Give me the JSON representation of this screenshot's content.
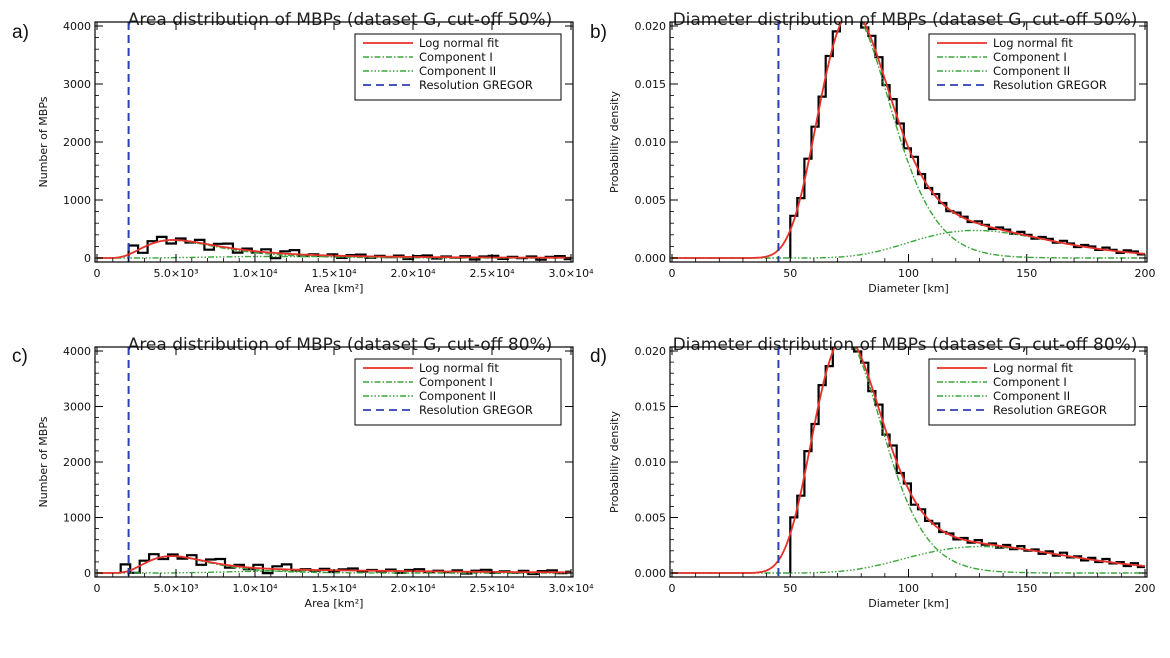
{
  "colors": {
    "histogram": "#000000",
    "fit": "#e8312a",
    "component": "#3aa53a",
    "resolution": "#2f3fb4"
  },
  "legend_entries": [
    "Log normal fit",
    "Component I",
    "Component II",
    "Resolution GREGOR"
  ],
  "chart_data": [
    {
      "panel": "a)",
      "type": "line",
      "title": "Area distribution of MBPs (dataset G, cut-off 50%)",
      "xlabel": "Area [km²]",
      "ylabel": "Number of MBPs",
      "xlim": [
        0,
        30000
      ],
      "ylim": [
        0,
        4000
      ],
      "xticks": [
        0,
        5000,
        10000,
        15000,
        20000,
        25000,
        30000
      ],
      "xtick_labels": [
        "0",
        "5.0×10³",
        "1.0×10⁴",
        "1.5×10⁴",
        "2.0×10⁴",
        "2.5×10⁴",
        "3.0×10⁴"
      ],
      "yticks": [
        0,
        1000,
        2000,
        3000,
        4000
      ],
      "ytick_labels": [
        "0",
        "1000",
        "2000",
        "3000",
        "4000"
      ],
      "resolution_line": 2000,
      "legend": [
        "Log normal fit",
        "Component I",
        "Component II",
        "Resolution GREGOR"
      ],
      "fit": {
        "kind": "lognormal-mixture",
        "scale": 2400000,
        "components": [
          {
            "w": 0.82,
            "median": 6000,
            "sigma": 0.48
          },
          {
            "w": 0.18,
            "median": 15000,
            "sigma": 0.5
          }
        ]
      },
      "histogram": {
        "start": 2000,
        "bin_width": 600,
        "noise": [
          50,
          -90,
          40,
          70,
          -60,
          30,
          -20
        ]
      }
    },
    {
      "panel": "b)",
      "type": "line",
      "title": "Diameter distribution of MBPs (dataset G, cut-off 50%)",
      "xlabel": "Diameter [km]",
      "ylabel": "Probability density",
      "xlim": [
        0,
        200
      ],
      "ylim": [
        0,
        0.02
      ],
      "xticks": [
        0,
        50,
        100,
        150,
        200
      ],
      "xtick_labels": [
        "0",
        "50",
        "100",
        "150",
        "200"
      ],
      "yticks": [
        0,
        0.005,
        0.01,
        0.015,
        0.02
      ],
      "ytick_labels": [
        "0.000",
        "0.005",
        "0.010",
        "0.015",
        "0.020"
      ],
      "resolution_line": 45,
      "legend": [
        "Log normal fit",
        "Component I",
        "Component II",
        "Resolution GREGOR"
      ],
      "fit": {
        "kind": "lognormal-mixture",
        "scale": 1,
        "components": [
          {
            "w": 0.82,
            "median": 79,
            "sigma": 0.2
          },
          {
            "w": 0.18,
            "median": 135,
            "sigma": 0.23
          }
        ]
      },
      "histogram": {
        "start": 50,
        "bin_width": 3,
        "noise": [
          0.0003,
          -0.0002,
          0.0005,
          0.0002,
          -0.0003,
          0.0004
        ]
      }
    },
    {
      "panel": "c)",
      "type": "line",
      "title": "Area distribution of MBPs (dataset G, cut-off 80%)",
      "xlabel": "Area [km²]",
      "ylabel": "Number of MBPs",
      "xlim": [
        0,
        30000
      ],
      "ylim": [
        0,
        4000
      ],
      "xticks": [
        0,
        5000,
        10000,
        15000,
        20000,
        25000,
        30000
      ],
      "xtick_labels": [
        "0",
        "5.0×10³",
        "1.0×10⁴",
        "1.5×10⁴",
        "2.0×10⁴",
        "2.5×10⁴",
        "3.0×10⁴"
      ],
      "yticks": [
        0,
        1000,
        2000,
        3000,
        4000
      ],
      "ytick_labels": [
        "0",
        "1000",
        "2000",
        "3000",
        "4000"
      ],
      "resolution_line": 2000,
      "legend": [
        "Log normal fit",
        "Component I",
        "Component II",
        "Resolution GREGOR"
      ],
      "fit": {
        "kind": "lognormal-mixture",
        "scale": 2400000,
        "components": [
          {
            "w": 0.68,
            "median": 5600,
            "sigma": 0.42
          },
          {
            "w": 0.32,
            "median": 17500,
            "sigma": 0.45
          }
        ]
      },
      "histogram": {
        "start": 1500,
        "bin_width": 600,
        "noise": [
          60,
          -80,
          50,
          90,
          -40,
          30,
          -30
        ]
      }
    },
    {
      "panel": "d)",
      "type": "line",
      "title": "Diameter distribution of MBPs (dataset G, cut-off 80%)",
      "xlabel": "Diameter [km]",
      "ylabel": "Probability density",
      "xlim": [
        0,
        200
      ],
      "ylim": [
        0,
        0.02
      ],
      "xticks": [
        0,
        50,
        100,
        150,
        200
      ],
      "xtick_labels": [
        "0",
        "50",
        "100",
        "150",
        "200"
      ],
      "yticks": [
        0,
        0.005,
        0.01,
        0.015,
        0.02
      ],
      "ytick_labels": [
        "0.000",
        "0.005",
        "0.010",
        "0.015",
        "0.020"
      ],
      "resolution_line": 45,
      "legend": [
        "Log normal fit",
        "Component I",
        "Component II",
        "Resolution GREGOR"
      ],
      "fit": {
        "kind": "lognormal-mixture",
        "scale": 1,
        "components": [
          {
            "w": 0.79,
            "median": 76,
            "sigma": 0.2
          },
          {
            "w": 0.21,
            "median": 140,
            "sigma": 0.26
          }
        ]
      },
      "histogram": {
        "start": 50,
        "bin_width": 3,
        "noise": [
          0.0004,
          -0.0003,
          0.0006,
          -0.0002,
          0.0003,
          -0.0004
        ]
      }
    }
  ]
}
